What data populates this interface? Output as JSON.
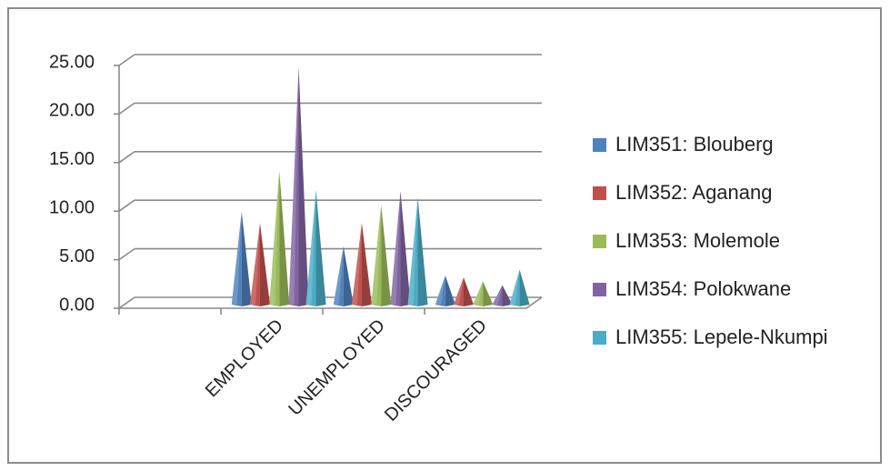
{
  "chart_data": {
    "type": "bar",
    "style": "3d-cone",
    "categories": [
      "EMPLOYED",
      "UNEMPLOYED",
      "DISCOURAGED"
    ],
    "series": [
      {
        "name": "LIM351: Blouberg",
        "values": [
          9.6,
          6.0,
          3.0
        ],
        "color": "#4f81bd"
      },
      {
        "name": "LIM352: Aganang",
        "values": [
          8.4,
          8.4,
          2.8
        ],
        "color": "#c0504d"
      },
      {
        "name": "LIM353: Molemole",
        "values": [
          13.8,
          10.3,
          2.4
        ],
        "color": "#9bbb59"
      },
      {
        "name": "LIM354: Polokwane",
        "values": [
          24.5,
          11.7,
          2.0
        ],
        "color": "#8064a2"
      },
      {
        "name": "LIM355: Lepele-Nkumpi",
        "values": [
          11.8,
          11.0,
          3.6
        ],
        "color": "#4bacc6"
      }
    ],
    "yticks": [
      "0.00",
      "5.00",
      "10.00",
      "15.00",
      "20.00",
      "25.00"
    ],
    "ylim": [
      0,
      25
    ],
    "grid": true,
    "legend_position": "right",
    "title": "",
    "xlabel": "",
    "ylabel": ""
  }
}
